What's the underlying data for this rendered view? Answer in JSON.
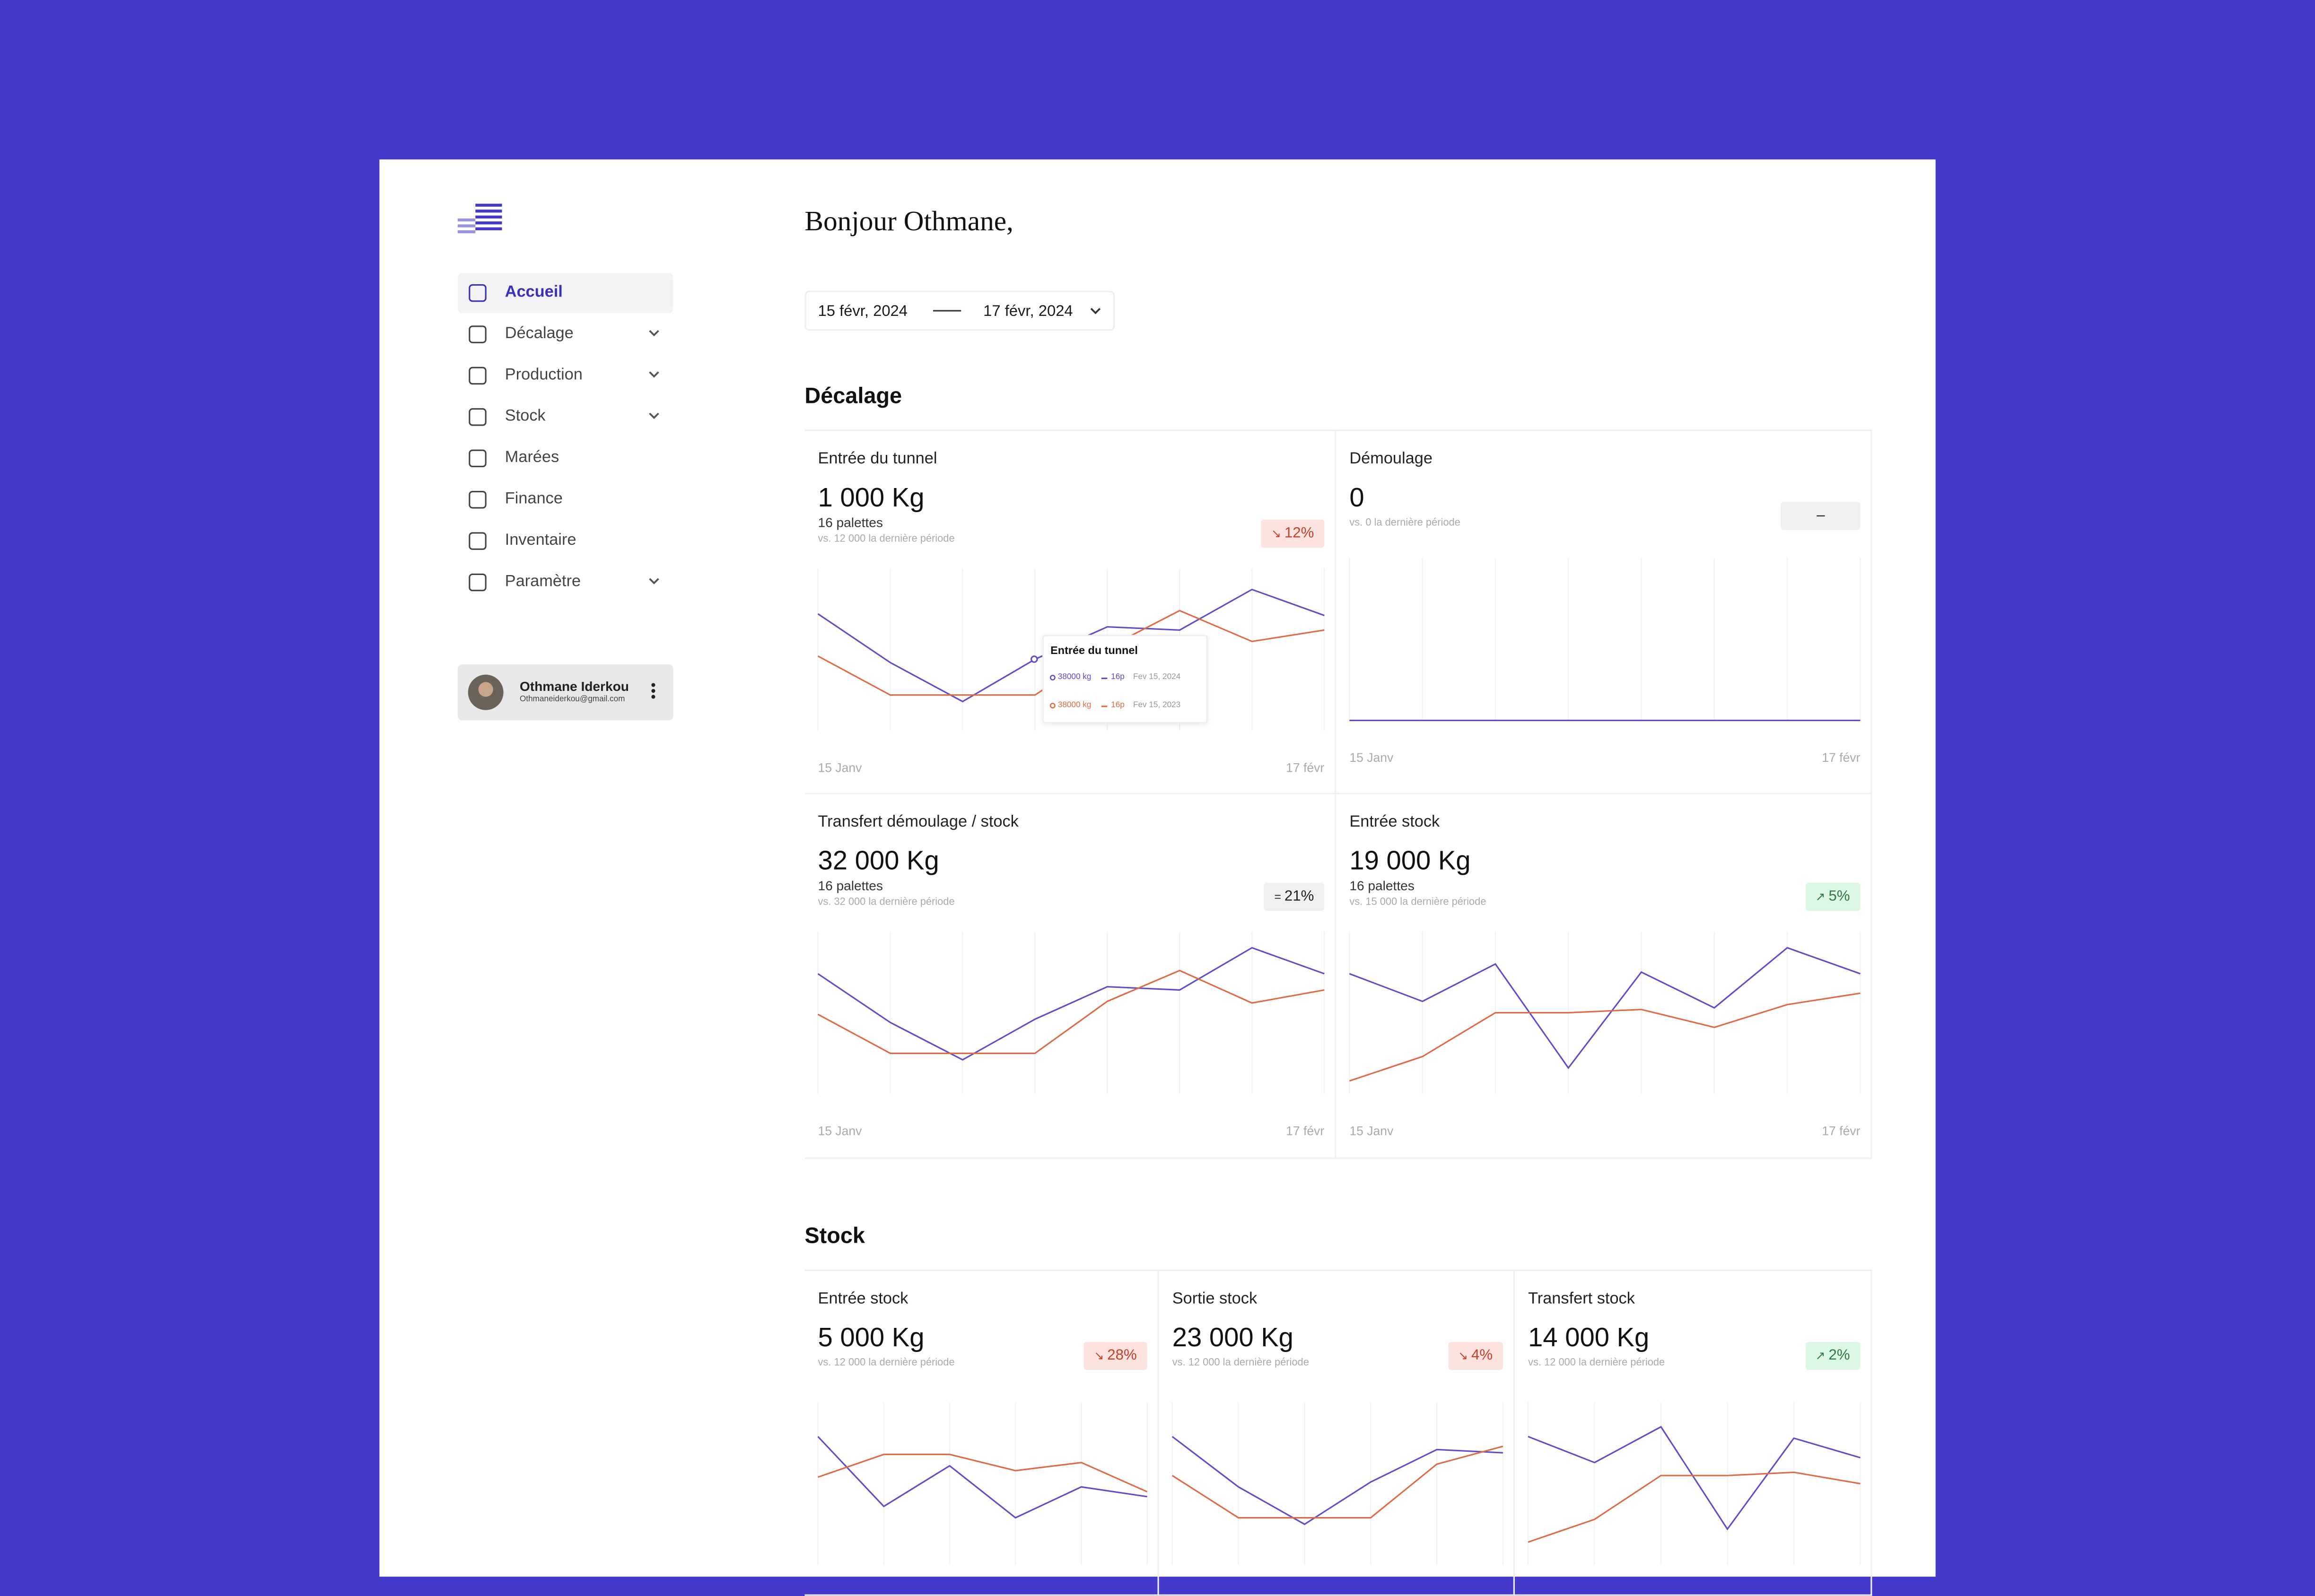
{
  "sidebar": {
    "nav": [
      {
        "label": "Accueil",
        "active": true,
        "expandable": false
      },
      {
        "label": "Décalage",
        "active": false,
        "expandable": true
      },
      {
        "label": "Production",
        "active": false,
        "expandable": true
      },
      {
        "label": "Stock",
        "active": false,
        "expandable": true
      },
      {
        "label": "Marées",
        "active": false,
        "expandable": false
      },
      {
        "label": "Finance",
        "active": false,
        "expandable": false
      },
      {
        "label": "Inventaire",
        "active": false,
        "expandable": false
      },
      {
        "label": "Paramètre",
        "active": false,
        "expandable": true
      }
    ],
    "user": {
      "name": "Othmane Iderkou",
      "email": "Othmaneiderkou@gmail.com"
    }
  },
  "header": {
    "greeting": "Bonjour Othmane,",
    "date_from": "15 févr, 2024",
    "date_to": "17 févr, 2024"
  },
  "sections": [
    {
      "title": "Décalage",
      "cards": [
        {
          "title": "Entrée du tunnel",
          "value": "1 000 Kg",
          "sub": "16 palettes",
          "compare": "vs. 12 000 la dernière période",
          "badge": "12%",
          "trend": "down",
          "chart": {
            "type": "line",
            "x_start": "15 Janv",
            "x_end": "17 févr",
            "ylim": [
              0,
              100
            ],
            "series": [
              {
                "color": "#5b4fc9",
                "values": [
                  72,
                  42,
                  18,
                  44,
                  64,
                  62,
                  87,
                  71
                ]
              },
              {
                "color": "#e06a45",
                "values": [
                  46,
                  22,
                  22,
                  22,
                  51,
                  74,
                  55,
                  62
                ]
              }
            ]
          },
          "tooltip": {
            "title": "Entrée du tunnel",
            "rows": [
              {
                "value": "38000 kg",
                "pallets": "16p",
                "date": "Fev 15, 2024"
              },
              {
                "value": "38000 kg",
                "pallets": "16p",
                "date": "Fev 15, 2023"
              }
            ]
          }
        },
        {
          "title": "Démoulage",
          "value": "0",
          "compare": "vs. 0 la dernière période",
          "badge": "–",
          "trend": "none",
          "chart": {
            "type": "line",
            "x_start": "15 Janv",
            "x_end": "17 févr",
            "ylim": [
              0,
              100
            ],
            "series": [
              {
                "color": "#5b4fc9",
                "values": [
                  0,
                  0,
                  0,
                  0,
                  0,
                  0,
                  0,
                  0
                ]
              }
            ]
          }
        },
        {
          "title": "Transfert démoulage / stock",
          "value": "32 000 Kg",
          "sub": "16 palettes",
          "compare": "vs. 32 000 la dernière période",
          "badge": "21%",
          "trend": "flat",
          "chart": {
            "type": "line",
            "x_start": "15 Janv",
            "x_end": "17 févr",
            "ylim": [
              0,
              100
            ],
            "series": [
              {
                "color": "#5b4fc9",
                "values": [
                  74,
                  44,
                  21,
                  46,
                  66,
                  64,
                  90,
                  74
                ]
              },
              {
                "color": "#e06a45",
                "values": [
                  49,
                  25,
                  25,
                  25,
                  57,
                  76,
                  56,
                  64
                ]
              }
            ]
          }
        },
        {
          "title": "Entrée stock",
          "value": "19 000 Kg",
          "sub": "16 palettes",
          "compare": "vs. 15 000 la dernière période",
          "badge": "5%",
          "trend": "up",
          "chart": {
            "type": "line",
            "x_start": "15 Janv",
            "x_end": "17 févr",
            "ylim": [
              0,
              100
            ],
            "series": [
              {
                "color": "#5b4fc9",
                "values": [
                  74,
                  57,
                  80,
                  16,
                  75,
                  53,
                  90,
                  74
                ]
              },
              {
                "color": "#e06a45",
                "values": [
                  8,
                  23,
                  50,
                  50,
                  52,
                  41,
                  55,
                  62
                ]
              }
            ]
          }
        }
      ]
    },
    {
      "title": "Stock",
      "cards": [
        {
          "title": "Entrée stock",
          "value": "5 000 Kg",
          "compare": "vs. 12 000 la dernière période",
          "badge": "28%",
          "trend": "down",
          "chart": {
            "type": "line",
            "ylim": [
              0,
              100
            ],
            "series": [
              {
                "color": "#5b4fc9",
                "values": [
                  79,
                  36,
                  61,
                  29,
                  48,
                  42
                ]
              },
              {
                "color": "#e06a45",
                "values": [
                  54,
                  68,
                  68,
                  58,
                  63,
                  45
                ]
              }
            ]
          }
        },
        {
          "title": "Sortie stock",
          "value": "23 000 Kg",
          "compare": "vs. 12 000 la dernière période",
          "badge": "4%",
          "trend": "down",
          "chart": {
            "type": "line",
            "ylim": [
              0,
              100
            ],
            "series": [
              {
                "color": "#5b4fc9",
                "values": [
                  79,
                  48,
                  25,
                  51,
                  71,
                  69
                ]
              },
              {
                "color": "#e06a45",
                "values": [
                  55,
                  29,
                  29,
                  29,
                  62,
                  73
                ]
              }
            ]
          }
        },
        {
          "title": "Transfert stock",
          "value": "14 000 Kg",
          "compare": "vs. 12 000 la dernière période",
          "badge": "2%",
          "trend": "up",
          "chart": {
            "type": "line",
            "ylim": [
              0,
              100
            ],
            "series": [
              {
                "color": "#5b4fc9",
                "values": [
                  79,
                  63,
                  85,
                  22,
                  78,
                  66
                ]
              },
              {
                "color": "#e06a45",
                "values": [
                  14,
                  28,
                  55,
                  55,
                  57,
                  50
                ]
              }
            ]
          }
        }
      ]
    }
  ]
}
